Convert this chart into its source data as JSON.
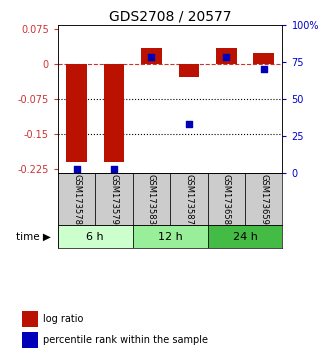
{
  "title": "GDS2708 / 20577",
  "samples": [
    "GSM173578",
    "GSM173579",
    "GSM173583",
    "GSM173587",
    "GSM173658",
    "GSM173659"
  ],
  "time_groups": [
    {
      "label": "6 h",
      "samples": [
        0,
        1
      ],
      "color": "#ccffcc"
    },
    {
      "label": "12 h",
      "samples": [
        2,
        3
      ],
      "color": "#99ee99"
    },
    {
      "label": "24 h",
      "samples": [
        4,
        5
      ],
      "color": "#44bb44"
    }
  ],
  "log_ratio": [
    -0.21,
    -0.21,
    0.035,
    -0.027,
    0.035,
    0.025
  ],
  "percentile_rank": [
    3,
    3,
    78,
    33,
    78,
    70
  ],
  "bar_color": "#bb1100",
  "dot_color": "#0000bb",
  "ylim_left": [
    -0.235,
    0.085
  ],
  "ylim_right": [
    0,
    100
  ],
  "yticks_left": [
    0.075,
    0,
    -0.075,
    -0.15,
    -0.225
  ],
  "yticks_right": [
    100,
    75,
    50,
    25,
    0
  ],
  "dotted_lines": [
    -0.075,
    -0.15
  ],
  "bar_width": 0.55,
  "title_fontsize": 10,
  "tick_fontsize": 7,
  "legend_fontsize": 7,
  "sample_label_fontsize": 6,
  "time_label_fontsize": 8
}
